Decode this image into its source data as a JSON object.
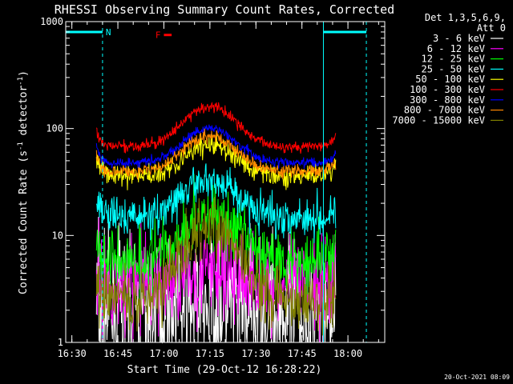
{
  "chart_data": {
    "type": "line",
    "title": "RHESSI Observing Summary Count Rates, Corrected",
    "xlabel": "Start Time (29-Oct-12 16:28:22)",
    "ylabel": "Corrected Count Rate (s",
    "ylabel_sup1": "-1",
    "ylabel_mid": " detector",
    "ylabel_sup2": "-1",
    "ylabel_end": ")",
    "y_scale": "log",
    "ylim": [
      1,
      1000
    ],
    "y_ticks": [
      {
        "value": 1,
        "label": "1"
      },
      {
        "value": 10,
        "label": "10"
      },
      {
        "value": 100,
        "label": "100"
      },
      {
        "value": 1000,
        "label": "1000"
      }
    ],
    "xlim": [
      "16:28",
      "18:12"
    ],
    "x_ticks": [
      "16:30",
      "16:45",
      "17:00",
      "17:15",
      "17:30",
      "17:45",
      "18:00"
    ],
    "data_start": "16:38",
    "data_end": "17:56",
    "peak_time": "17:15",
    "legend_header": [
      "Det 1,3,5,6,9,",
      "Att 0"
    ],
    "legend_position": "top-right",
    "series": [
      {
        "name": "3 - 6 keV",
        "color": "#ffffff",
        "base": 1.8,
        "peak": 2.2,
        "noise": 0.35
      },
      {
        "name": "6 - 12 keV",
        "color": "#ff00ff",
        "base": 3.5,
        "peak": 4.5,
        "noise": 0.22
      },
      {
        "name": "12 - 25 keV",
        "color": "#00ff00",
        "base": 6.0,
        "peak": 16,
        "noise": 0.15
      },
      {
        "name": "25 - 50 keV",
        "color": "#00ffff",
        "base": 15,
        "peak": 33,
        "noise": 0.09
      },
      {
        "name": "50 - 100 keV",
        "color": "#ffff00",
        "base": 36,
        "peak": 70,
        "noise": 0.05
      },
      {
        "name": "100 - 300 keV",
        "color": "#ff0000",
        "base": 68,
        "peak": 160,
        "noise": 0.025
      },
      {
        "name": "300 - 800 keV",
        "color": "#0000ff",
        "base": 48,
        "peak": 100,
        "noise": 0.025
      },
      {
        "name": "800 - 7000 keV",
        "color": "#ff8800",
        "base": 40,
        "peak": 85,
        "noise": 0.03
      },
      {
        "name": "7000 - 15000 keV",
        "color": "#808000",
        "base": 2.5,
        "peak": 12,
        "noise": 0.15
      }
    ],
    "night_intervals": [
      {
        "label": "N",
        "start": "16:28",
        "end": "16:40",
        "level": 800
      },
      {
        "label": "",
        "start": "17:52",
        "end": "18:06",
        "level": 800
      }
    ],
    "flare_marker": {
      "label": "F",
      "start": "17:00",
      "end": "17:02",
      "level": 750
    },
    "colors": {
      "night": "#00ffff",
      "flare": "#ff0000",
      "axes": "#ffffff",
      "background": "#000000"
    }
  },
  "footer": {
    "timestamp": "20-Oct-2021 08:09"
  }
}
